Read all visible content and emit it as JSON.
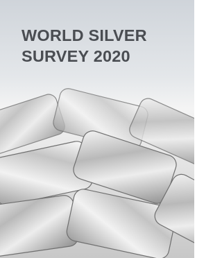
{
  "cover": {
    "title_lines": [
      "WORLD SILVER",
      "SURVEY 2020"
    ]
  }
}
